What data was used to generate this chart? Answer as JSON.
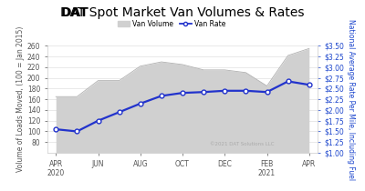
{
  "title_bold": "DAT",
  "title_rest": " Spot Market Van Volumes & Rates",
  "xtick_positions": [
    0,
    2,
    4,
    6,
    8,
    10,
    12
  ],
  "xtick_labels": [
    "APR\n2020",
    "JUN",
    "AUG",
    "OCT",
    "DEC",
    "FEB\n2021",
    "APR"
  ],
  "month_positions": [
    0,
    1,
    2,
    3,
    4,
    5,
    6,
    7,
    8,
    9,
    10,
    11,
    12
  ],
  "van_volume_high": [
    165,
    165,
    195,
    195,
    222,
    230,
    225,
    215,
    215,
    210,
    185,
    242,
    255
  ],
  "van_volume_low": [
    60,
    60,
    60,
    60,
    60,
    60,
    60,
    60,
    60,
    60,
    60,
    60,
    60
  ],
  "ylim_left": [
    60,
    260
  ],
  "ylim_right": [
    1.0,
    3.5
  ],
  "ylabel_left": "Volume of Loads Moved, (100 = Jan 2015)",
  "ylabel_right": "National Average Rate Per Mile, Including Fuel",
  "volume_color": "#d0d0d0",
  "rate_color": "#2233cc",
  "rate_markersize": 3.5,
  "rate_linewidth": 1.6,
  "bg_color": "#ffffff",
  "grid_color": "#e0e0e0",
  "copyright_text": "©2021 DAT Solutions LLC",
  "legend_volume": "Van Volume",
  "legend_rate": "Van Rate",
  "title_fontsize": 10,
  "axis_fontsize": 5.5,
  "tick_fontsize": 5.5,
  "yticks_left": [
    80,
    100,
    120,
    140,
    160,
    180,
    200,
    220,
    240,
    260
  ],
  "yticks_right_vals": [
    1.0,
    1.25,
    1.5,
    1.75,
    2.0,
    2.25,
    2.5,
    2.75,
    3.0,
    3.25,
    3.5
  ],
  "yticks_right_labels": [
    "$1.00",
    "$1.25",
    "$1.50",
    "$1.75",
    "$2.00",
    "$2.25",
    "$2.50",
    "$2.75",
    "$3.00",
    "$3.25",
    "$3.50"
  ],
  "rate_x": [
    0,
    1,
    2,
    3,
    4,
    5,
    6,
    7,
    8,
    9,
    10,
    11,
    12
  ],
  "rate_y": [
    1.55,
    1.5,
    1.75,
    1.95,
    2.15,
    2.33,
    2.4,
    2.42,
    2.45,
    2.45,
    2.42,
    2.67,
    2.59
  ]
}
